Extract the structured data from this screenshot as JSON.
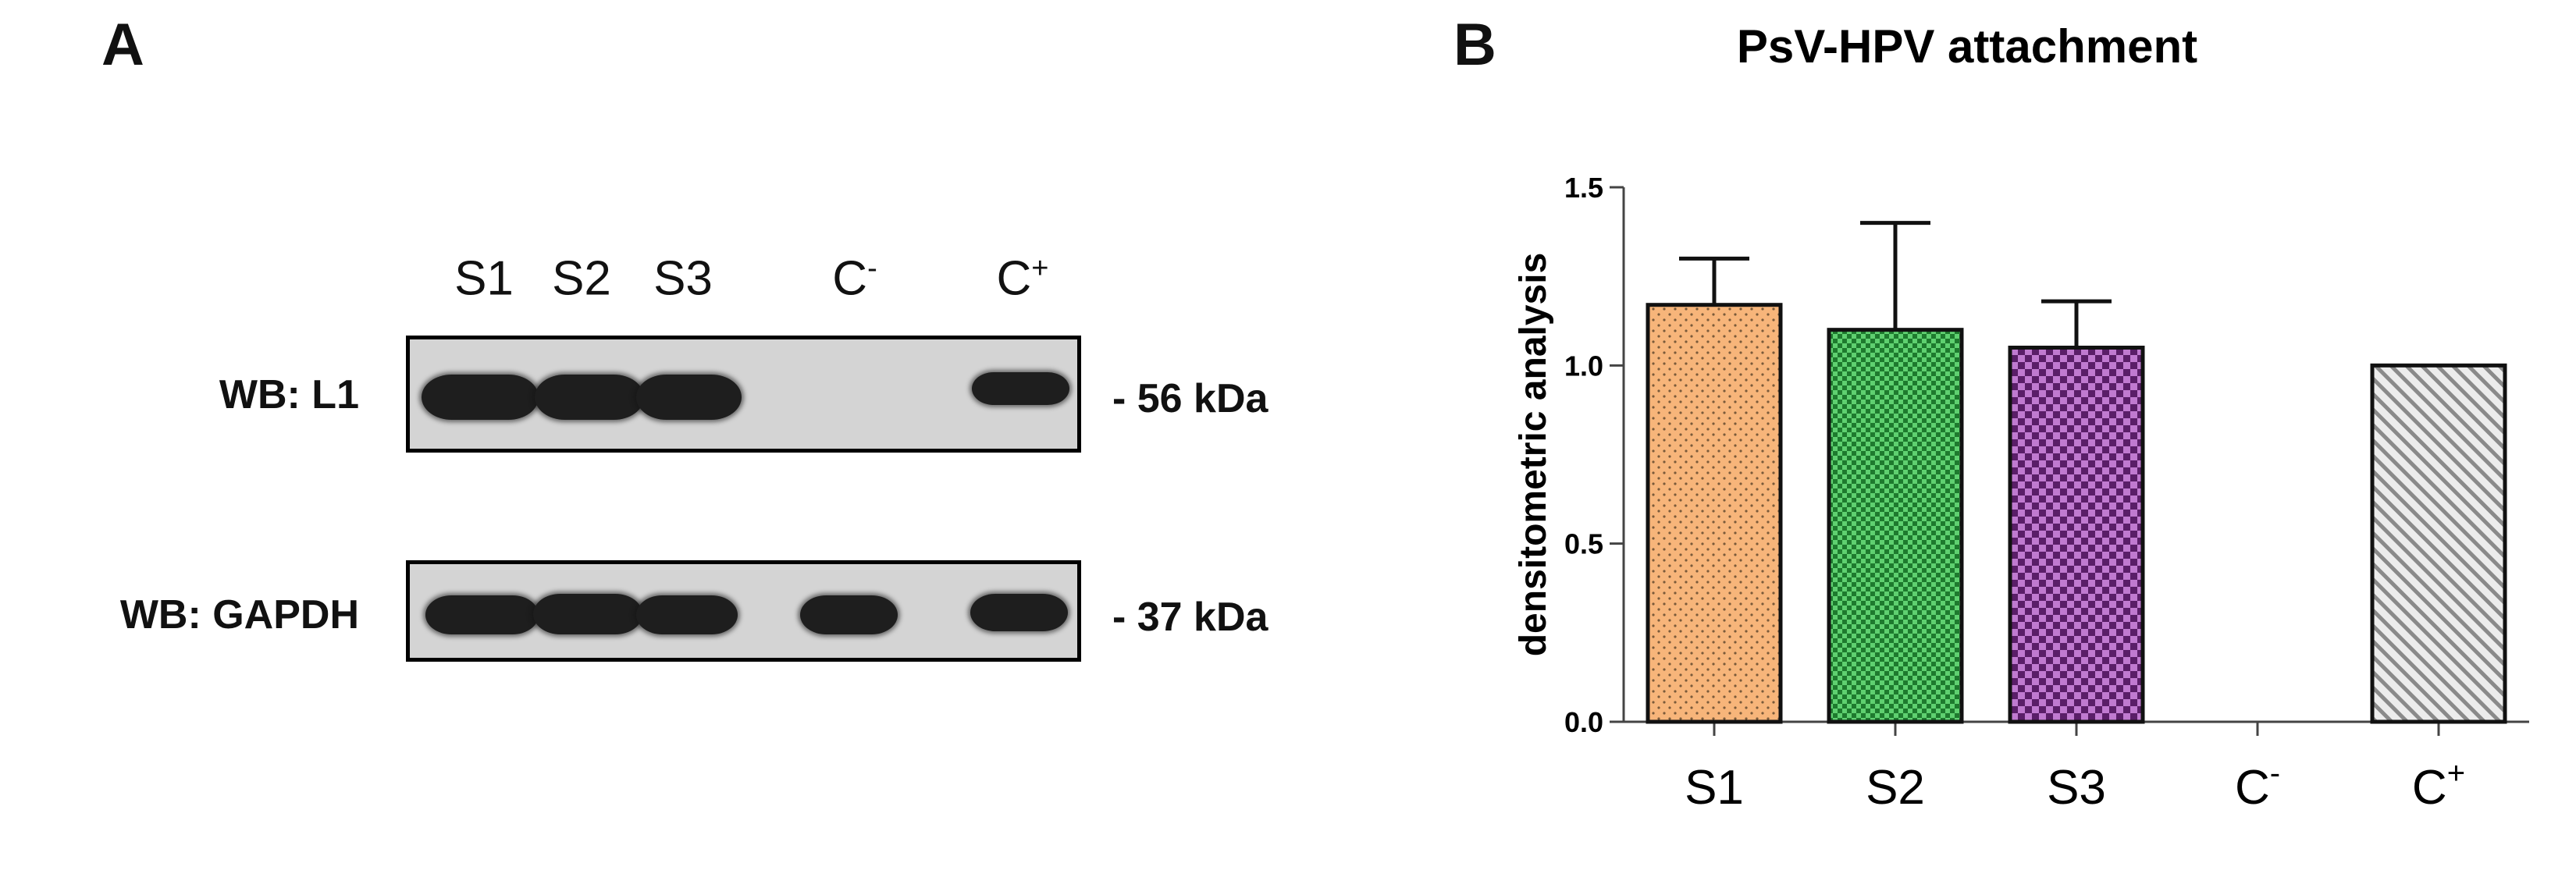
{
  "panel_a": {
    "letter": "A",
    "lanes": [
      "S1",
      "S2",
      "S3",
      "C",
      "C"
    ],
    "lane_superscripts": [
      "",
      "",
      "",
      "-",
      "+"
    ],
    "blots": [
      {
        "label": "WB: L1",
        "size_label": "- 56 kDa",
        "bands_present": [
          true,
          true,
          true,
          false,
          true
        ]
      },
      {
        "label": "WB: GAPDH",
        "size_label": "- 37 kDa",
        "bands_present": [
          true,
          true,
          true,
          true,
          true
        ]
      }
    ]
  },
  "panel_b": {
    "letter": "B",
    "colors": {
      "S1": "#f7b57a",
      "S2": "#3fae55",
      "S3": "#9b4fa8",
      "C+": "#bdbdbd"
    }
  },
  "chart_data": {
    "type": "bar",
    "title": "PsV-HPV attachment",
    "ylabel": "densitometric analysis",
    "xlabel": "",
    "categories": [
      "S1",
      "S2",
      "S3",
      "C",
      "C"
    ],
    "category_superscripts": [
      "",
      "",
      "",
      "-",
      "+"
    ],
    "values": [
      1.17,
      1.1,
      1.05,
      0.0,
      1.0
    ],
    "errors": [
      0.13,
      0.3,
      0.13,
      0,
      0
    ],
    "ylim": [
      0,
      1.5
    ],
    "yticks": [
      "0.0",
      "0.5",
      "1.0",
      "1.5"
    ],
    "ytick_values": [
      0,
      0.5,
      1.0,
      1.5
    ],
    "grid": false,
    "legend": "none"
  }
}
